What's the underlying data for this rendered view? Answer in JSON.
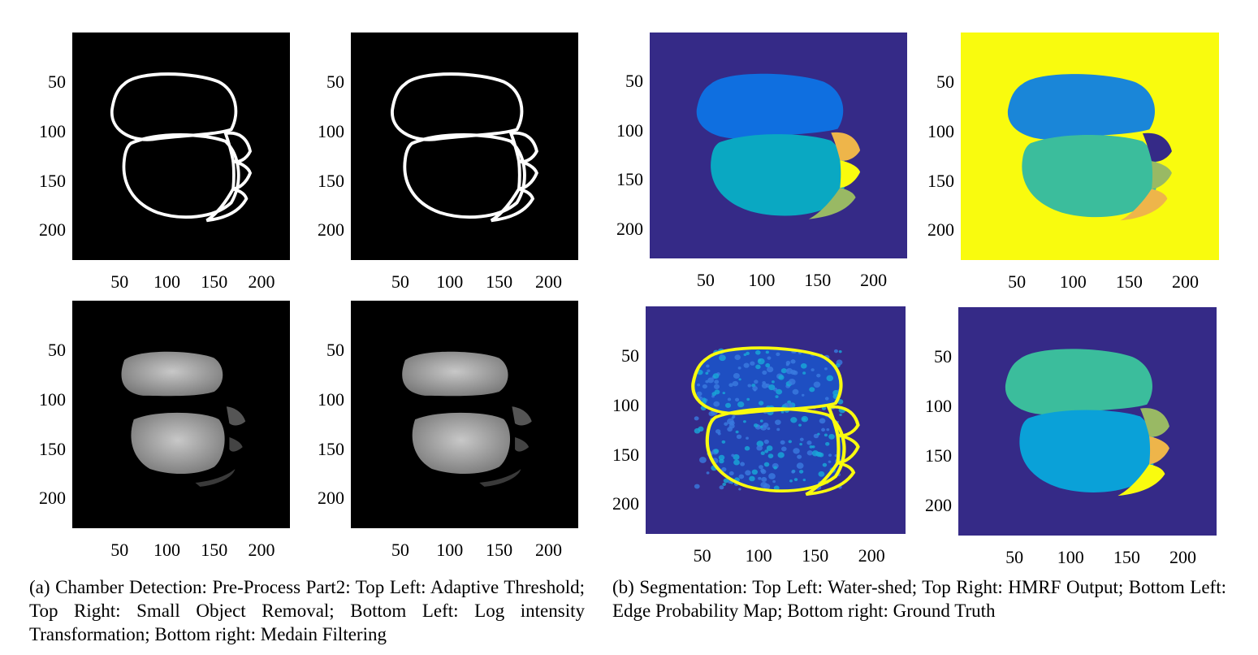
{
  "axes": {
    "yticks": [
      "50",
      "100",
      "150",
      "200"
    ],
    "xticks": [
      "50",
      "100",
      "150",
      "200"
    ]
  },
  "panels": [
    {
      "id": "adaptive-threshold",
      "style": "binary"
    },
    {
      "id": "small-object-removal",
      "style": "binary"
    },
    {
      "id": "log-intensity-transformation",
      "style": "gray"
    },
    {
      "id": "median-filtering",
      "style": "gray"
    },
    {
      "id": "water-shed",
      "style": "watershed"
    },
    {
      "id": "hmrf-output",
      "style": "hmrf"
    },
    {
      "id": "edge-probability-map",
      "style": "edge"
    },
    {
      "id": "ground-truth",
      "style": "truth"
    }
  ],
  "colors": {
    "parula_blue": "#352a87",
    "parula_yellow": "#f9fb0e",
    "parula_royal": "#0f6fe0",
    "parula_teal": "#0aa8c2",
    "parula_green": "#3bbd9c",
    "parula_orange": "#eeb54a",
    "parula_olive": "#99b964"
  },
  "captions": {
    "a": "(a) Chamber Detection: Pre-Process Part2: Top Left: Adaptive Threshold; Top Right: Small Object Removal; Bottom Left: Log intensity Transformation; Bottom right: Medain Filtering",
    "b": "(b) Segmentation: Top Left: Water-shed; Top Right: HMRF Output; Bottom Left: Edge Probability Map; Bottom right: Ground Truth"
  }
}
